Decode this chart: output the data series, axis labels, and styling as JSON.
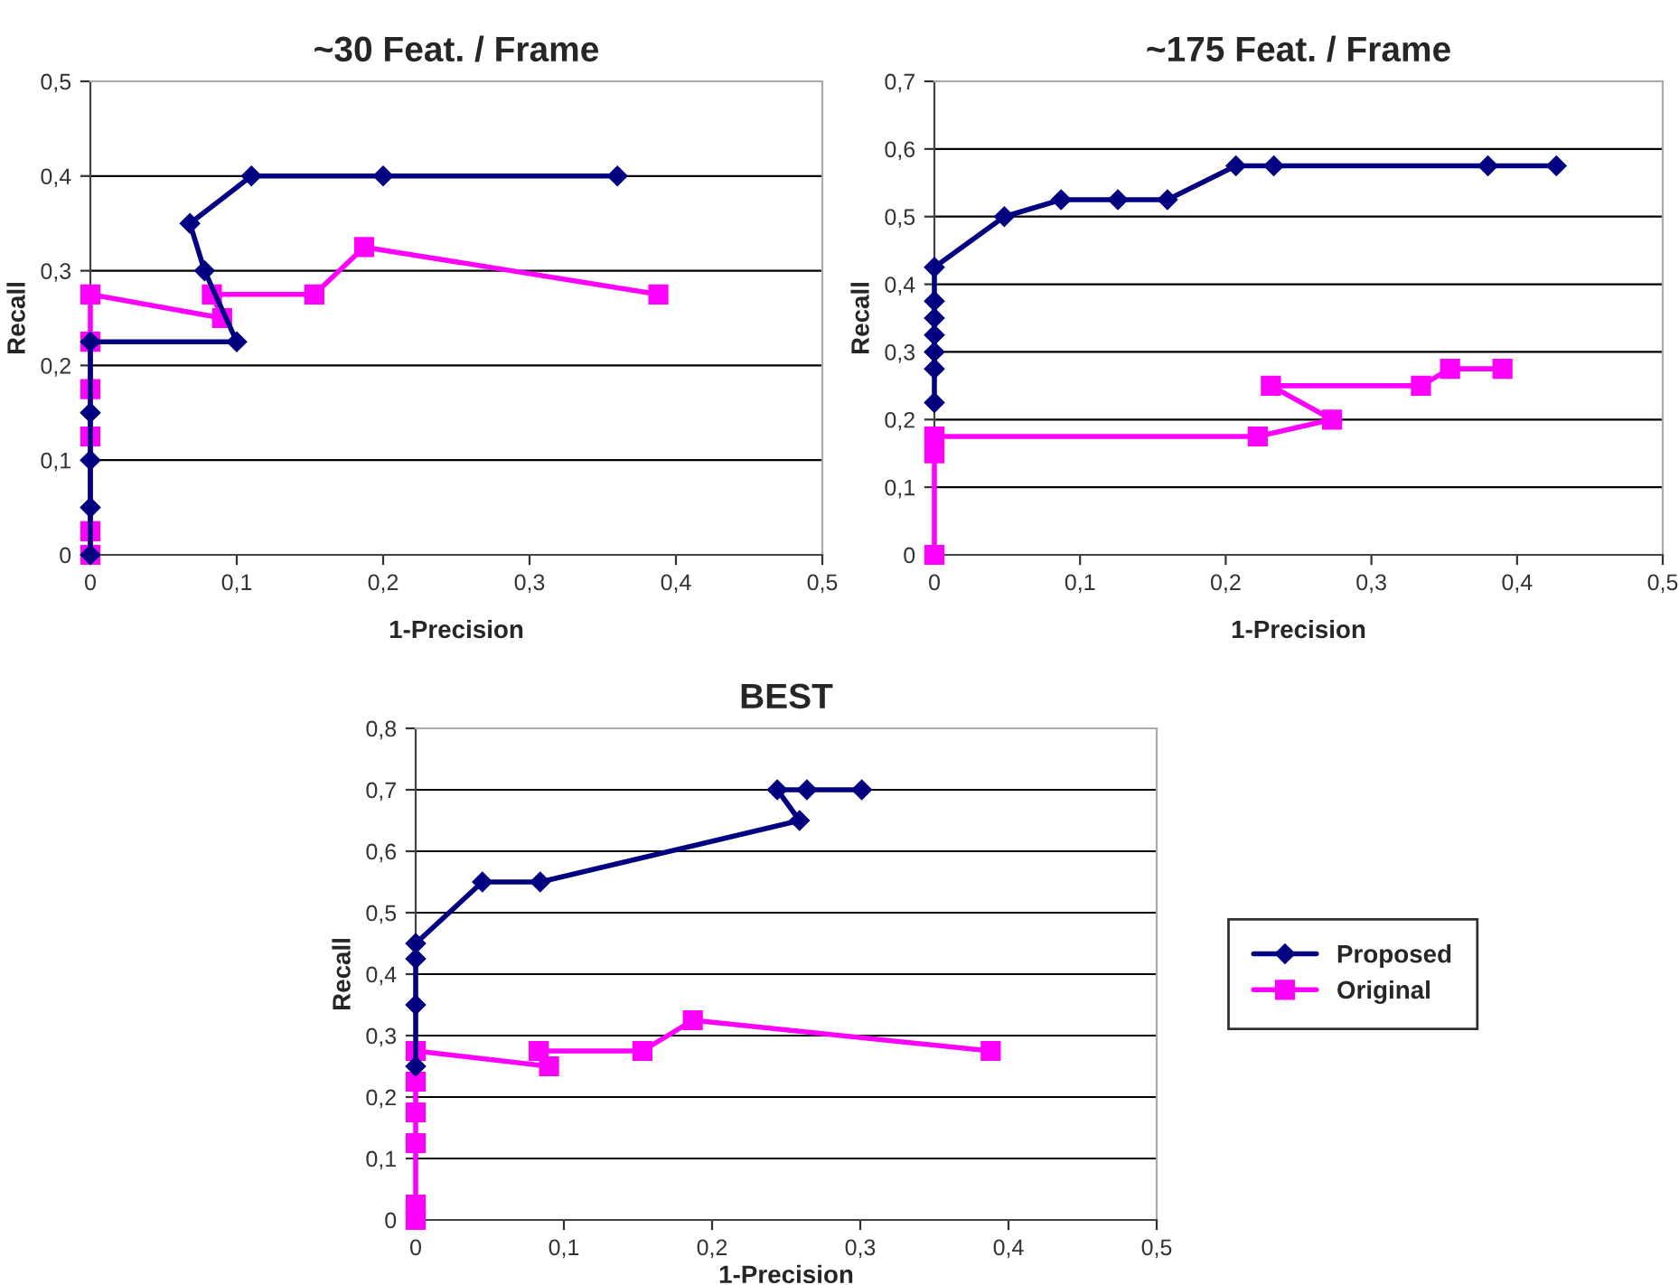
{
  "chart_data": [
    {
      "type": "line",
      "title": "~30 Feat. / Frame",
      "xlabel": "1-Precision",
      "ylabel": "Recall",
      "grid": "y",
      "xlim": [
        0,
        0.5
      ],
      "xticks": [
        0,
        {
          "value": 0.1,
          "label": "0,1"
        },
        {
          "value": 0.2,
          "label": "0,2"
        },
        {
          "value": 0.3,
          "label": "0,3"
        },
        {
          "value": 0.4,
          "label": "0,4"
        },
        {
          "value": 0.5,
          "label": "0,5"
        }
      ],
      "ylim": [
        0,
        0.5
      ],
      "yticks": [
        0,
        {
          "value": 0.1,
          "label": "0,1"
        },
        {
          "value": 0.2,
          "label": "0,2"
        },
        {
          "value": 0.3,
          "label": "0,3"
        },
        {
          "value": 0.4,
          "label": "0,4"
        },
        {
          "value": 0.5,
          "label": "0,5"
        }
      ],
      "series": [
        {
          "color": "#000080",
          "marker": "diamond",
          "x": [
            0,
            0,
            0,
            0,
            0,
            0.1,
            0.078,
            0.068,
            0.11,
            0.2,
            0.36
          ],
          "values": [
            0,
            0.05,
            0.1,
            0.15,
            0.225,
            0.225,
            0.3,
            0.35,
            0.4,
            0.4,
            0.4
          ]
        },
        {
          "color": "#ff00ff",
          "marker": "square",
          "x": [
            0,
            0,
            0,
            0,
            0,
            0,
            0.09,
            0.083,
            0.153,
            0.187,
            0.388
          ],
          "values": [
            0,
            0.025,
            0.125,
            0.175,
            0.225,
            0.275,
            0.25,
            0.275,
            0.275,
            0.325,
            0.275
          ]
        }
      ]
    },
    {
      "type": "line",
      "title": "~175 Feat. / Frame",
      "xlabel": "1-Precision",
      "ylabel": "Recall",
      "grid": "y",
      "xlim": [
        0,
        0.5
      ],
      "xticks": [
        0,
        {
          "value": 0.1,
          "label": "0,1"
        },
        {
          "value": 0.2,
          "label": "0,2"
        },
        {
          "value": 0.3,
          "label": "0,3"
        },
        {
          "value": 0.4,
          "label": "0,4"
        },
        {
          "value": 0.5,
          "label": "0,5"
        }
      ],
      "ylim": [
        0,
        0.7
      ],
      "yticks": [
        0,
        {
          "value": 0.1,
          "label": "0,1"
        },
        {
          "value": 0.2,
          "label": "0,2"
        },
        {
          "value": 0.3,
          "label": "0,3"
        },
        {
          "value": 0.4,
          "label": "0,4"
        },
        {
          "value": 0.5,
          "label": "0,5"
        },
        {
          "value": 0.6,
          "label": "0,6"
        },
        {
          "value": 0.7,
          "label": "0,7"
        }
      ],
      "series": [
        {
          "color": "#000080",
          "marker": "diamond",
          "x": [
            0,
            0,
            0,
            0,
            0,
            0,
            0,
            0.048,
            0.087,
            0.126,
            0.16,
            0.207,
            0.233,
            0.38,
            0.427
          ],
          "values": [
            0.225,
            0.275,
            0.3,
            0.325,
            0.35,
            0.375,
            0.425,
            0.5,
            0.525,
            0.525,
            0.525,
            0.575,
            0.575,
            0.575,
            0.575
          ]
        },
        {
          "color": "#ff00ff",
          "marker": "square",
          "x": [
            0,
            0,
            0,
            0.222,
            0.273,
            0.231,
            0.334,
            0.354,
            0.39
          ],
          "values": [
            0,
            0.15,
            0.175,
            0.175,
            0.2,
            0.25,
            0.25,
            0.275,
            0.275
          ]
        }
      ]
    },
    {
      "type": "line",
      "title": "BEST",
      "xlabel": "1-Precision",
      "ylabel": "Recall",
      "grid": "y",
      "legend": "right",
      "xlim": [
        0,
        0.5
      ],
      "xticks": [
        0,
        {
          "value": 0.1,
          "label": "0,1"
        },
        {
          "value": 0.2,
          "label": "0,2"
        },
        {
          "value": 0.3,
          "label": "0,3"
        },
        {
          "value": 0.4,
          "label": "0,4"
        },
        {
          "value": 0.5,
          "label": "0,5"
        }
      ],
      "ylim": [
        0,
        0.8
      ],
      "yticks": [
        0,
        {
          "value": 0.1,
          "label": "0,1"
        },
        {
          "value": 0.2,
          "label": "0,2"
        },
        {
          "value": 0.3,
          "label": "0,3"
        },
        {
          "value": 0.4,
          "label": "0,4"
        },
        {
          "value": 0.5,
          "label": "0,5"
        },
        {
          "value": 0.6,
          "label": "0,6"
        },
        {
          "value": 0.7,
          "label": "0,7"
        },
        {
          "value": 0.8,
          "label": "0,8"
        }
      ],
      "series": [
        {
          "name": "Proposed",
          "color": "#000080",
          "marker": "diamond",
          "x": [
            0,
            0,
            0,
            0,
            0.045,
            0.084,
            0.259,
            0.244,
            0.264,
            0.301
          ],
          "values": [
            0.25,
            0.35,
            0.425,
            0.45,
            0.55,
            0.55,
            0.65,
            0.7,
            0.7,
            0.7
          ]
        },
        {
          "name": "Original",
          "color": "#ff00ff",
          "marker": "square",
          "x": [
            0,
            0,
            0,
            0,
            0,
            0,
            0.09,
            0.083,
            0.153,
            0.187,
            0.388
          ],
          "values": [
            0,
            0.025,
            0.125,
            0.175,
            0.225,
            0.275,
            0.25,
            0.275,
            0.275,
            0.325,
            0.275
          ]
        }
      ]
    }
  ]
}
